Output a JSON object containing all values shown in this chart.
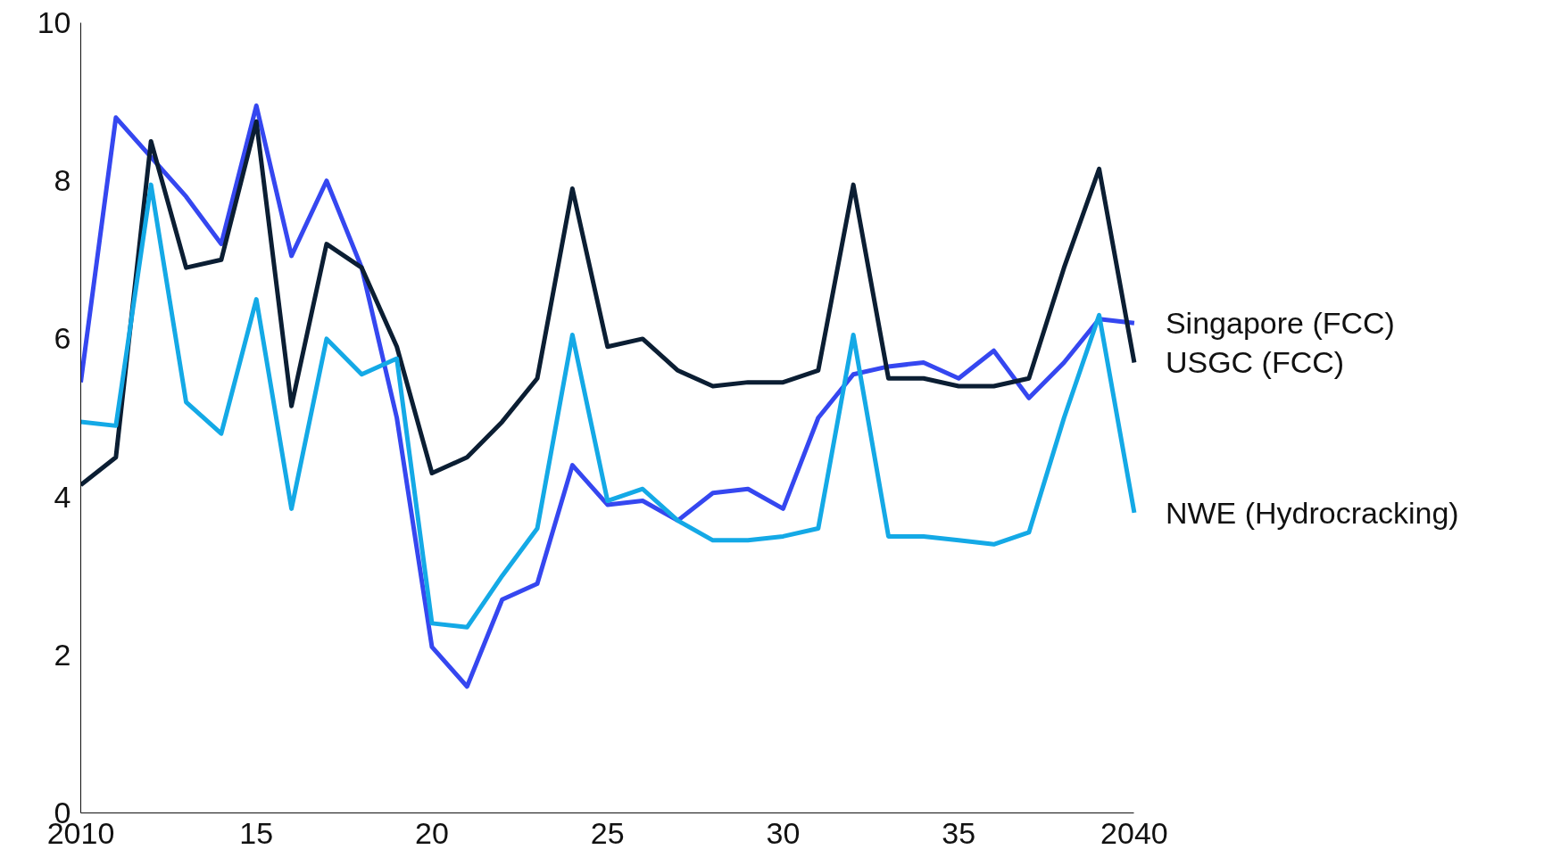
{
  "chart_data": {
    "type": "line",
    "x": [
      2010,
      2011,
      2012,
      2013,
      2014,
      2015,
      2016,
      2017,
      2018,
      2019,
      2020,
      2021,
      2022,
      2023,
      2024,
      2025,
      2026,
      2027,
      2028,
      2029,
      2030,
      2031,
      2032,
      2033,
      2034,
      2035,
      2036,
      2037,
      2038,
      2039,
      2040
    ],
    "series": [
      {
        "name": "Singapore (FCC)",
        "color": "#3547f0",
        "values": [
          5.45,
          8.8,
          8.3,
          7.8,
          7.2,
          8.95,
          7.05,
          8.0,
          6.9,
          5.0,
          2.1,
          1.6,
          2.7,
          2.9,
          4.4,
          3.9,
          3.95,
          3.7,
          4.05,
          4.1,
          3.85,
          5.0,
          5.55,
          5.65,
          5.7,
          5.5,
          5.85,
          5.25,
          5.7,
          6.25,
          6.2
        ]
      },
      {
        "name": "USGC (FCC)",
        "color": "#0b1e33",
        "values": [
          4.15,
          4.5,
          8.5,
          6.9,
          7.0,
          8.75,
          5.15,
          7.2,
          6.9,
          5.9,
          4.3,
          4.5,
          4.95,
          5.5,
          7.9,
          5.9,
          6.0,
          5.6,
          5.4,
          5.45,
          5.45,
          5.6,
          7.95,
          5.5,
          5.5,
          5.4,
          5.4,
          5.5,
          6.9,
          8.15,
          5.7
        ]
      },
      {
        "name": "NWE (Hydrocracking)",
        "color": "#14a9e6",
        "values": [
          4.95,
          4.9,
          7.95,
          5.2,
          4.8,
          6.5,
          3.85,
          6.0,
          5.55,
          5.75,
          2.4,
          2.35,
          3.0,
          3.6,
          6.05,
          3.95,
          4.1,
          3.7,
          3.45,
          3.45,
          3.5,
          3.6,
          6.05,
          3.5,
          3.5,
          3.45,
          3.4,
          3.55,
          5.0,
          6.3,
          3.8
        ]
      }
    ],
    "xlim": [
      2010,
      2040
    ],
    "xticks": [
      {
        "value": 2010,
        "label": "2010"
      },
      {
        "value": 2015,
        "label": "15"
      },
      {
        "value": 2020,
        "label": "20"
      },
      {
        "value": 2025,
        "label": "25"
      },
      {
        "value": 2030,
        "label": "30"
      },
      {
        "value": 2035,
        "label": "35"
      },
      {
        "value": 2040,
        "label": "2040"
      }
    ],
    "ylim": [
      0,
      10
    ],
    "yticks": [
      0,
      2,
      4,
      6,
      8,
      10
    ],
    "grid": false,
    "marker": "none",
    "line_style": "solid"
  }
}
